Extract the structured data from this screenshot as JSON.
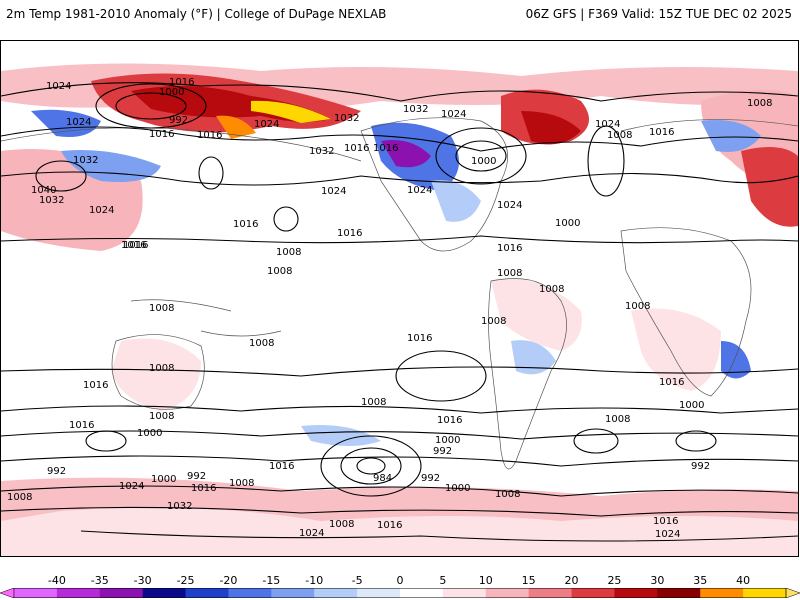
{
  "header": {
    "title": "2m Temp 1981-2010 Anomaly (°F) | College of DuPage NEXLAB",
    "run_info": "06Z GFS | F369 Valid: 15Z TUE DEC 02 2025"
  },
  "colorbar": {
    "labels": [
      "-40",
      "-35",
      "-30",
      "-25",
      "-20",
      "-15",
      "-10",
      "-5",
      "0",
      "5",
      "10",
      "15",
      "20",
      "25",
      "30",
      "35",
      "40"
    ],
    "colors": [
      "#e066ff",
      "#b52bd8",
      "#8c12b0",
      "#0b0b8a",
      "#1f40c8",
      "#4f74e6",
      "#7ea0f0",
      "#b4cdf8",
      "#dde8fb",
      "#ffffff",
      "#fde3e6",
      "#f7b4bb",
      "#ee7e86",
      "#dc3c40",
      "#b60a0f",
      "#860000",
      "#ff8c00",
      "#ffd700"
    ],
    "left_arrow_color": "#ff66ff",
    "right_arrow_color": "#ffe066"
  },
  "pressure_labels": [
    {
      "text": "1024"
    },
    {
      "text": "1016"
    },
    {
      "text": "1000"
    },
    {
      "text": "992"
    },
    {
      "text": "1024"
    },
    {
      "text": "1016"
    },
    {
      "text": "1024"
    },
    {
      "text": "1032"
    },
    {
      "text": "1040"
    },
    {
      "text": "1032"
    },
    {
      "text": "1024"
    },
    {
      "text": "1016"
    },
    {
      "text": "1016"
    },
    {
      "text": "1032"
    },
    {
      "text": "1016"
    },
    {
      "text": "1032"
    },
    {
      "text": "1024"
    },
    {
      "text": "1016"
    },
    {
      "text": "1016"
    },
    {
      "text": "1024"
    },
    {
      "text": "1016"
    },
    {
      "text": "1008"
    },
    {
      "text": "1008"
    },
    {
      "text": "1016"
    },
    {
      "text": "1008"
    },
    {
      "text": "1008"
    },
    {
      "text": "1008"
    },
    {
      "text": "1016"
    },
    {
      "text": "1016"
    },
    {
      "text": "1008"
    },
    {
      "text": "1008"
    },
    {
      "text": "1016"
    },
    {
      "text": "1000"
    },
    {
      "text": "992"
    },
    {
      "text": "984"
    },
    {
      "text": "992"
    },
    {
      "text": "1000"
    },
    {
      "text": "1008"
    },
    {
      "text": "1016"
    },
    {
      "text": "1000"
    },
    {
      "text": "992"
    },
    {
      "text": "1008"
    },
    {
      "text": "1016"
    },
    {
      "text": "1008"
    },
    {
      "text": "1000"
    },
    {
      "text": "1008"
    },
    {
      "text": "1016"
    },
    {
      "text": "992"
    },
    {
      "text": "1016"
    },
    {
      "text": "1008"
    },
    {
      "text": "992"
    },
    {
      "text": "1000"
    },
    {
      "text": "1024"
    },
    {
      "text": "1016"
    },
    {
      "text": "1032"
    },
    {
      "text": "1024"
    },
    {
      "text": "1008"
    },
    {
      "text": "1016"
    },
    {
      "text": "1008"
    },
    {
      "text": "1016"
    },
    {
      "text": "1024"
    },
    {
      "text": "1008"
    },
    {
      "text": "1000"
    },
    {
      "text": "1008"
    },
    {
      "text": "1032"
    },
    {
      "text": "1024"
    },
    {
      "text": "1008"
    },
    {
      "text": "1024"
    },
    {
      "text": "1016"
    },
    {
      "text": "1000"
    },
    {
      "text": "1024"
    },
    {
      "text": "1008"
    }
  ]
}
